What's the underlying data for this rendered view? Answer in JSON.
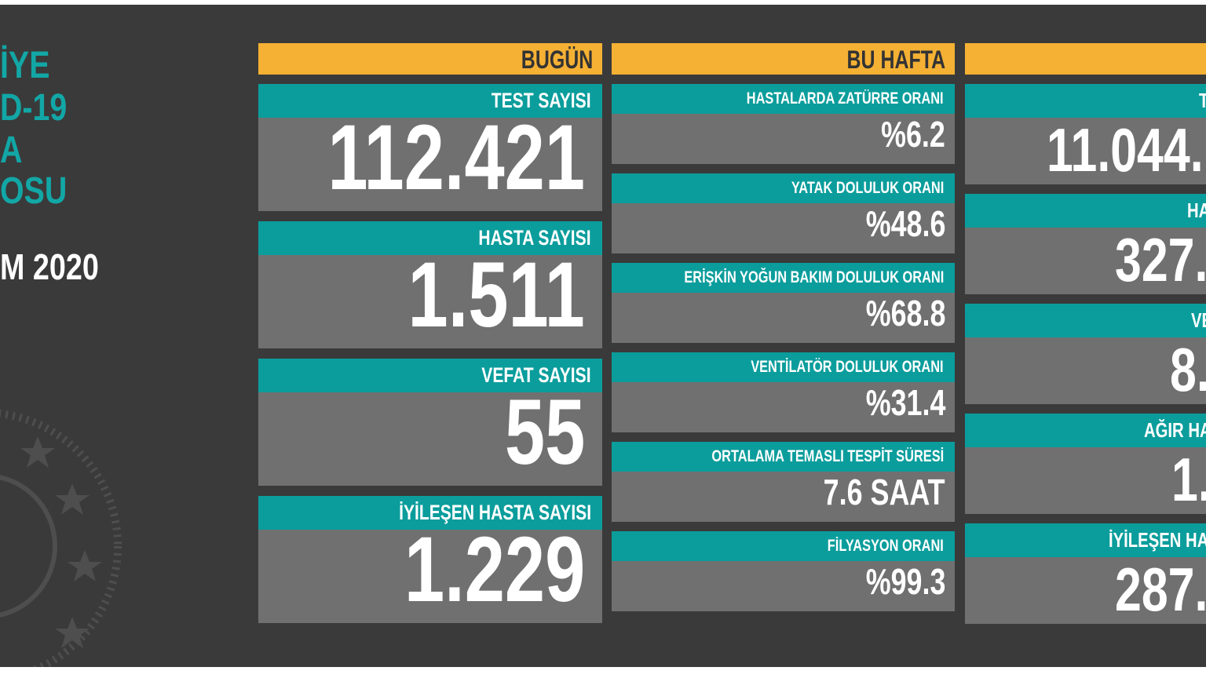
{
  "left_title": {
    "lines": [
      "İYE",
      "D-19",
      "A",
      "OSU"
    ],
    "date": "M 2020"
  },
  "columns": [
    {
      "header": "BUGÜN",
      "cards": [
        {
          "label": "TEST SAYISI",
          "value": "112.421"
        },
        {
          "label": "HASTA SAYISI",
          "value": "1.511"
        },
        {
          "label": "VEFAT SAYISI",
          "value": "55"
        },
        {
          "label": "İYİLEŞEN HASTA SAYISI",
          "value": "1.229"
        }
      ]
    },
    {
      "header": "BU HAFTA",
      "cards": [
        {
          "label": "HASTALARDA ZATÜRRE ORANI",
          "value": "%6.2"
        },
        {
          "label": "YATAK DOLULUK ORANI",
          "value": "%48.6"
        },
        {
          "label": "ERİŞKİN YOĞUN BAKIM DOLULUK ORANI",
          "value": "%68.8"
        },
        {
          "label": "VENTİLATÖR DOLULUK ORANI",
          "value": "%31.4"
        },
        {
          "label": "ORTALAMA TEMASLI TESPİT SÜRESİ",
          "value": "7.6 SAAT"
        },
        {
          "label": "FİLYASYON ORANI",
          "value": "%99.3"
        }
      ]
    },
    {
      "cards": [
        {
          "label": "T",
          "value": "11.044."
        },
        {
          "label": "HA",
          "value": "327."
        },
        {
          "label": "VE",
          "value": "8."
        },
        {
          "label": "AĞIR HA",
          "value": "1."
        },
        {
          "label": "İYİLEŞEN HA",
          "value": "287."
        }
      ]
    }
  ]
}
